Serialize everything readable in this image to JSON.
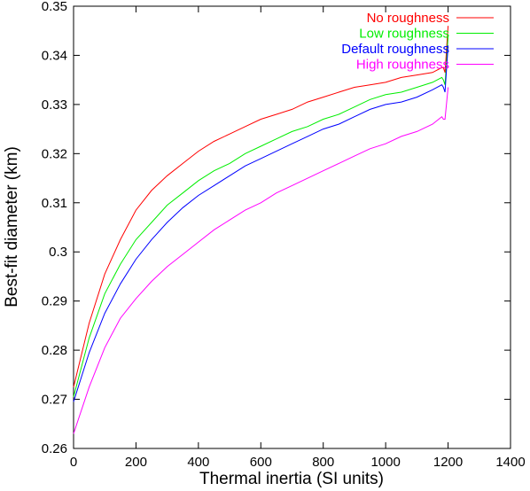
{
  "chart_data": {
    "type": "line",
    "xlabel": "Thermal inertia (SI units)",
    "ylabel": "Best-fit diameter (km)",
    "xlim": [
      0,
      1400
    ],
    "ylim": [
      0.26,
      0.35
    ],
    "xticks": [
      "0",
      "200",
      "400",
      "600",
      "800",
      "1000",
      "1200",
      "1400"
    ],
    "yticks": [
      "0.26",
      "0.27",
      "0.28",
      "0.29",
      "0.3",
      "0.31",
      "0.32",
      "0.33",
      "0.34",
      "0.35"
    ],
    "grid": false,
    "legend_position": "top-right",
    "x": [
      0,
      50,
      100,
      150,
      200,
      250,
      300,
      350,
      400,
      450,
      500,
      550,
      600,
      650,
      700,
      750,
      800,
      850,
      900,
      950,
      1000,
      1050,
      1100,
      1150,
      1180,
      1185,
      1190,
      1200
    ],
    "series": [
      {
        "name": "No roughness",
        "color": "#ff0000",
        "values": [
          0.2725,
          0.2855,
          0.2955,
          0.3025,
          0.3085,
          0.3125,
          0.3155,
          0.318,
          0.3205,
          0.3225,
          0.324,
          0.3255,
          0.327,
          0.328,
          0.329,
          0.3305,
          0.3315,
          0.3325,
          0.3335,
          0.334,
          0.3345,
          0.3355,
          0.336,
          0.3365,
          0.3375,
          0.3375,
          0.3365,
          0.346
        ]
      },
      {
        "name": "Low roughness",
        "color": "#00ee00",
        "values": [
          0.2705,
          0.2825,
          0.2915,
          0.2975,
          0.3025,
          0.306,
          0.3095,
          0.312,
          0.3145,
          0.3165,
          0.318,
          0.32,
          0.3215,
          0.323,
          0.3245,
          0.3255,
          0.327,
          0.328,
          0.3295,
          0.331,
          0.332,
          0.3325,
          0.3335,
          0.3345,
          0.3355,
          0.335,
          0.334,
          0.344
        ]
      },
      {
        "name": "Default roughness",
        "color": "#0000ff",
        "values": [
          0.2695,
          0.2795,
          0.2875,
          0.2935,
          0.2985,
          0.3025,
          0.306,
          0.309,
          0.3115,
          0.3135,
          0.3155,
          0.3175,
          0.319,
          0.3205,
          0.322,
          0.3235,
          0.325,
          0.326,
          0.3275,
          0.329,
          0.33,
          0.3305,
          0.3315,
          0.333,
          0.334,
          0.3335,
          0.3325,
          0.342
        ]
      },
      {
        "name": "High roughness",
        "color": "#ff00ff",
        "values": [
          0.263,
          0.2725,
          0.2805,
          0.2865,
          0.2905,
          0.294,
          0.297,
          0.2995,
          0.302,
          0.3045,
          0.3065,
          0.3085,
          0.31,
          0.312,
          0.3135,
          0.315,
          0.3165,
          0.318,
          0.3195,
          0.321,
          0.322,
          0.3235,
          0.3245,
          0.326,
          0.3275,
          0.327,
          0.327,
          0.3335
        ]
      }
    ]
  }
}
